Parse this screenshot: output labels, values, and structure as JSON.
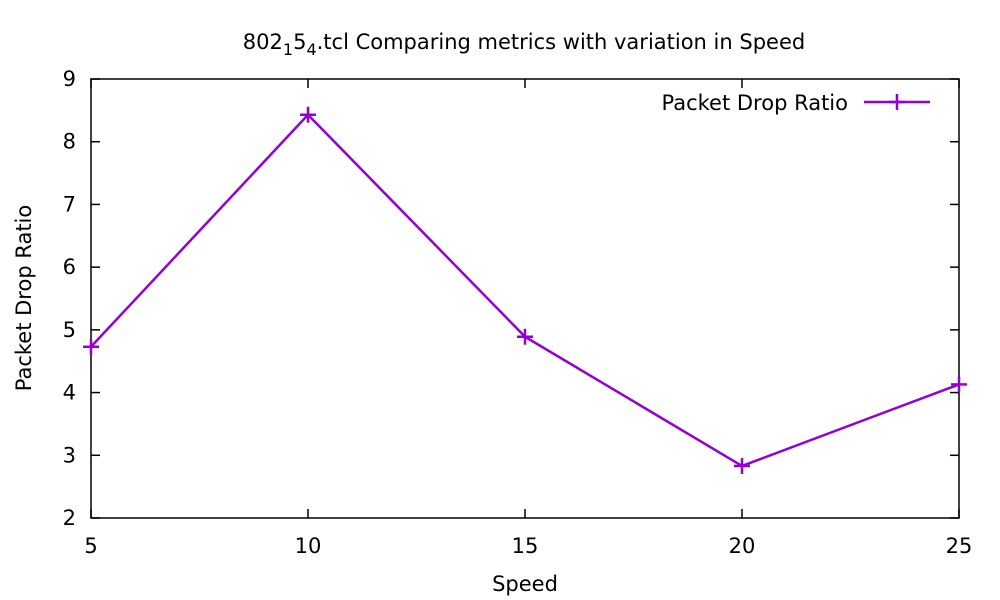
{
  "chart_data": {
    "type": "line",
    "title": {
      "base": "802",
      "sub1": "1",
      "mid": "5",
      "sub2": "4",
      "rest": ".tcl Comparing metrics with variation in Speed"
    },
    "xlabel": "Speed",
    "ylabel": "Packet Drop Ratio",
    "xlim": [
      5,
      25
    ],
    "ylim": [
      2,
      9
    ],
    "xticks": [
      5,
      10,
      15,
      20,
      25
    ],
    "yticks": [
      2,
      3,
      4,
      5,
      6,
      7,
      8,
      9
    ],
    "grid": false,
    "legend_position": "top-right",
    "series": [
      {
        "name": "Packet Drop Ratio",
        "color": "#9400d3",
        "marker": "plus",
        "x": [
          5,
          10,
          15,
          20,
          25
        ],
        "y": [
          4.73,
          8.43,
          4.89,
          2.83,
          4.13
        ]
      }
    ]
  }
}
